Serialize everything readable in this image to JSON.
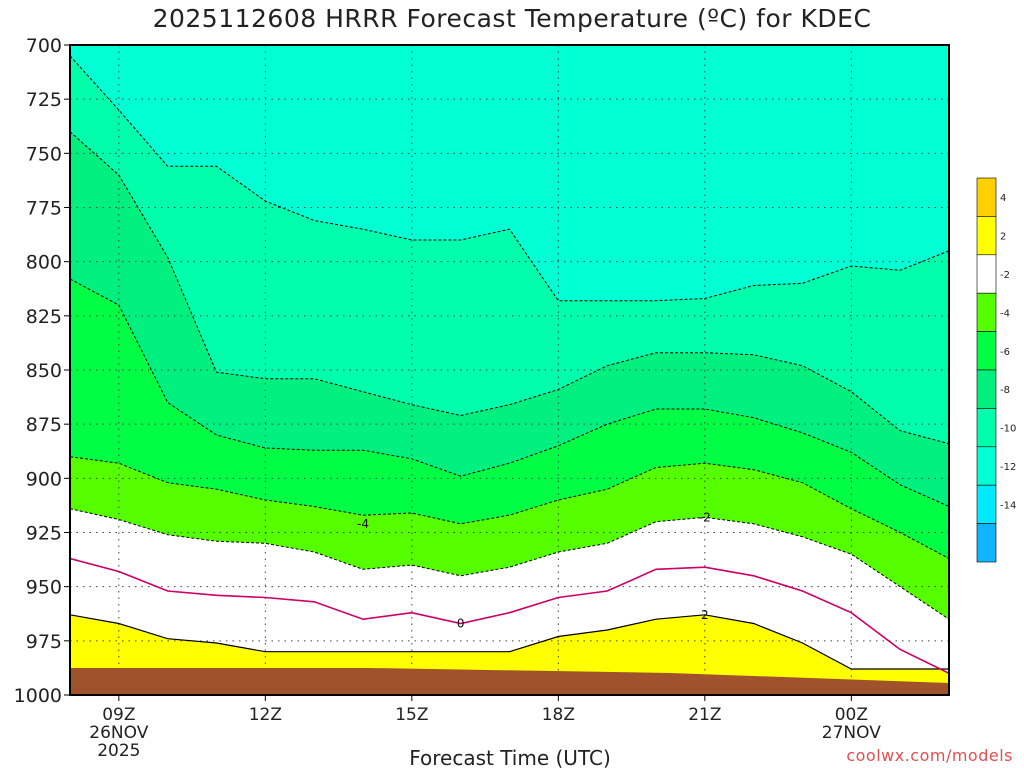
{
  "chart_data": {
    "type": "heatmap",
    "title": "2025112608 HRRR Forecast Temperature (ºC) for KDEC",
    "xlabel": "Forecast Time (UTC)",
    "ylabel": "",
    "credit": "coolwx.com/models",
    "x_ticks": [
      {
        "hour": 9,
        "label": "09Z",
        "sub": [
          "26NOV",
          "2025"
        ]
      },
      {
        "hour": 12,
        "label": "12Z",
        "sub": []
      },
      {
        "hour": 15,
        "label": "15Z",
        "sub": []
      },
      {
        "hour": 18,
        "label": "18Z",
        "sub": []
      },
      {
        "hour": 21,
        "label": "21Z",
        "sub": []
      },
      {
        "hour": 24,
        "label": "00Z",
        "sub": [
          "27NOV"
        ]
      }
    ],
    "xlim": [
      8,
      26
    ],
    "y_ticks": [
      700,
      725,
      750,
      775,
      800,
      825,
      850,
      875,
      900,
      925,
      950,
      975,
      1000
    ],
    "ylim": [
      1000,
      700
    ],
    "hours": [
      8,
      9,
      10,
      11,
      12,
      13,
      14,
      15,
      16,
      17,
      18,
      19,
      20,
      21,
      22,
      23,
      24,
      25,
      26
    ],
    "isotherms": [
      {
        "value": 2,
        "pressure": [
          963,
          967,
          974,
          976,
          980,
          980,
          980,
          980,
          980,
          980,
          973,
          970,
          965,
          963,
          967,
          976,
          988,
          988,
          988
        ],
        "labeled": true
      },
      {
        "value": 0,
        "pressure": [
          937,
          943,
          952,
          954,
          955,
          957,
          965,
          962,
          967,
          962,
          955,
          952,
          942,
          941,
          945,
          952,
          962,
          979,
          990
        ],
        "labeled": true
      },
      {
        "value": -2,
        "pressure": [
          914,
          919,
          926,
          929,
          930,
          934,
          942,
          940,
          945,
          941,
          934,
          930,
          920,
          918,
          921,
          927,
          935,
          950,
          965
        ],
        "labeled": true
      },
      {
        "value": -4,
        "pressure": [
          890,
          893,
          902,
          905,
          910,
          913,
          917,
          916,
          921,
          917,
          910,
          905,
          895,
          893,
          896,
          902,
          914,
          925,
          937
        ],
        "labeled": true
      },
      {
        "value": -6,
        "pressure": [
          808,
          820,
          865,
          880,
          886,
          887,
          887,
          891,
          899,
          893,
          885,
          875,
          868,
          868,
          872,
          879,
          888,
          903,
          913
        ],
        "labeled": false
      },
      {
        "value": -8,
        "pressure": [
          740,
          760,
          798,
          851,
          854,
          854,
          860,
          866,
          871,
          866,
          859,
          848,
          842,
          842,
          843,
          848,
          860,
          878,
          884
        ],
        "labeled": false
      },
      {
        "value": -10,
        "pressure": [
          705,
          730,
          756,
          756,
          772,
          781,
          785,
          790,
          790,
          785,
          818,
          818,
          818,
          817,
          811,
          810,
          802,
          804,
          795
        ],
        "labeled": false
      },
      {
        "value": -12,
        "pressure": [
          700,
          700,
          700,
          700,
          700,
          700,
          700,
          700,
          700,
          700,
          700,
          700,
          700,
          700,
          700,
          700,
          700,
          700,
          700
        ],
        "labeled": false
      },
      {
        "value": -14,
        "pressure": [
          700,
          700,
          700,
          700,
          700,
          700,
          700,
          700,
          700,
          700,
          700,
          700,
          700,
          700,
          700,
          700,
          700,
          700,
          700
        ],
        "labeled": false
      }
    ],
    "contour_labels": [
      {
        "text": "-4",
        "hour": 14,
        "pressure": 921
      },
      {
        "text": "-2",
        "hour": 21,
        "pressure": 918
      },
      {
        "text": "0",
        "hour": 16,
        "pressure": 967
      },
      {
        "text": "2",
        "hour": 21,
        "pressure": 963
      }
    ],
    "colorbar": {
      "ticks": [
        "4",
        "2",
        "-2",
        "-4",
        "-6",
        "-8",
        "-10",
        "-12",
        "-14"
      ],
      "bins": [
        {
          "range": [
            4,
            6
          ],
          "color": "#ffd000"
        },
        {
          "range": [
            2,
            4
          ],
          "color": "#ffff00"
        },
        {
          "range": [
            -2,
            2
          ],
          "color": "#ffffff"
        },
        {
          "range": [
            -4,
            -2
          ],
          "color": "#55ff00"
        },
        {
          "range": [
            -6,
            -4
          ],
          "color": "#00ff44"
        },
        {
          "range": [
            -8,
            -6
          ],
          "color": "#00f07f"
        },
        {
          "range": [
            -10,
            -8
          ],
          "color": "#00ffaa"
        },
        {
          "range": [
            -12,
            -10
          ],
          "color": "#00ffd2"
        },
        {
          "range": [
            -14,
            -12
          ],
          "color": "#00eaff"
        },
        {
          "range": [
            -16,
            -14
          ],
          "color": "#11b5ff"
        }
      ]
    },
    "ground_color": "#a0522d",
    "zero_line_color": "#cc0066",
    "grid": true
  }
}
